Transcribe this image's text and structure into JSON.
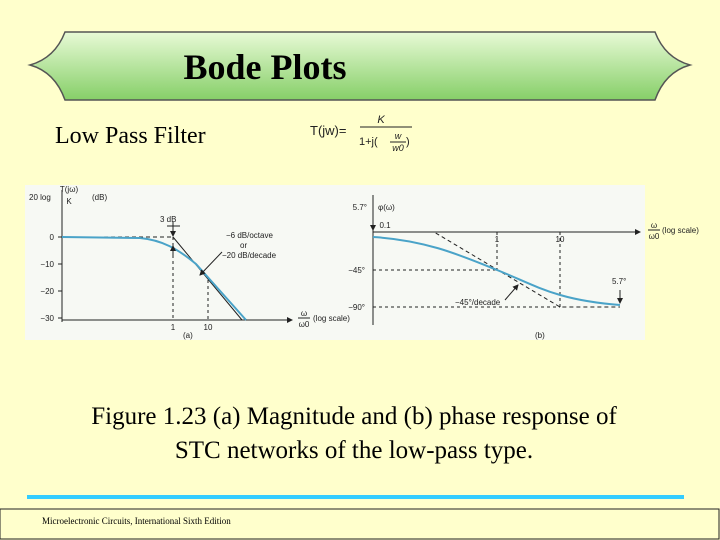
{
  "header": {
    "title": "Bode Plots"
  },
  "subtitle": "Low Pass Filter",
  "formula": {
    "lhs": "T(jw)=",
    "numerator": "K",
    "denominator_prefix": "1+j(",
    "inner_numerator": "w",
    "inner_denominator": "w0",
    "denominator_suffix": ")"
  },
  "figure": {
    "magnitude": {
      "y_label": "20 log",
      "y_fraction_numerator": "T(jω)",
      "y_fraction_denominator": "K",
      "y_unit": "(dB)",
      "y_ticks": [
        "0",
        "−10",
        "−20",
        "−30"
      ],
      "x_ticks": [
        "1",
        "10"
      ],
      "x_label_numerator": "ω",
      "x_label_denominator": "ω0",
      "x_scale": "(log scale)",
      "annotations": [
        "3 dB",
        "−6 dB/octave",
        "or",
        "−20 dB/decade"
      ],
      "panel": "(a)"
    },
    "phase": {
      "y_label": "φ(ω)",
      "y_ticks": [
        "−45°",
        "−90°"
      ],
      "x_ticks": [
        "0.1",
        "1",
        "10"
      ],
      "x_label_numerator": "ω",
      "x_label_denominator": "ω0",
      "x_scale": "(log scale)",
      "annotations": [
        "5.7°",
        "−45°/decade",
        "5.7°"
      ],
      "panel": "(b)"
    }
  },
  "caption": [
    "Figure 1.23 (a) Magnitude and (b) phase response of",
    "STC networks of the low-pass type."
  ],
  "footer": "Microelectronic Circuits, International Sixth Edition"
}
